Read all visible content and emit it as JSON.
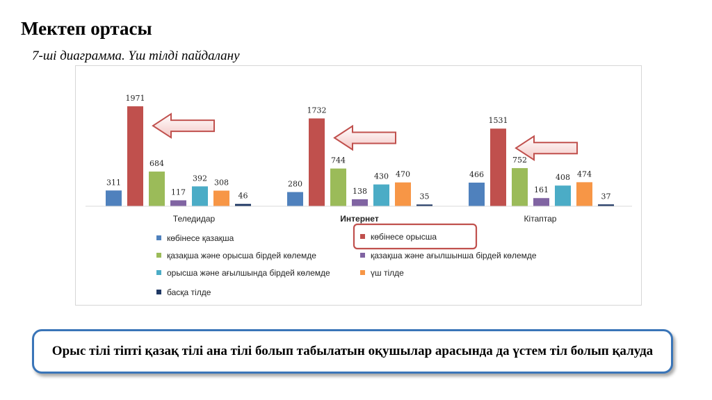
{
  "page": {
    "title": "Мектеп ортасы",
    "subtitle": "7-ші диаграмма. Үш тілді пайдалану",
    "callout": "Орыс тілі тіпті қазақ тілі ана тілі болып табылатын оқушылар арасында да үстем тіл болып қалуда"
  },
  "chart_data": {
    "type": "bar",
    "categories": [
      "Теледидар",
      "Интернет",
      "Кітаптар"
    ],
    "series": [
      {
        "name": "көбінесе қазақша",
        "color": "#4f81bd",
        "values": [
          311,
          280,
          466
        ]
      },
      {
        "name": "көбінесе орысша",
        "color": "#c0504d",
        "values": [
          1971,
          1732,
          1531
        ]
      },
      {
        "name": "қазақша және орысша бірдей көлемде",
        "color": "#9bbb59",
        "values": [
          684,
          744,
          752
        ]
      },
      {
        "name": "қазақша және ағылшынша бірдей көлемде",
        "color": "#8064a2",
        "values": [
          117,
          138,
          161
        ]
      },
      {
        "name": "орысша және ағылшында бірдей көлемде",
        "color": "#4bacc6",
        "values": [
          392,
          430,
          408
        ]
      },
      {
        "name": "үш тілде",
        "color": "#f79646",
        "values": [
          308,
          470,
          474
        ]
      },
      {
        "name": "басқа тілде",
        "color": "#1f3864",
        "values": [
          46,
          35,
          37
        ]
      }
    ],
    "ylim": [
      0,
      2150
    ],
    "grid": false,
    "bold_category": "Интернет",
    "highlighted_series": "көбінесе орысша",
    "annotations": "left-pointing arrows at the көбінесе орысша bars",
    "legend": "bottom"
  }
}
